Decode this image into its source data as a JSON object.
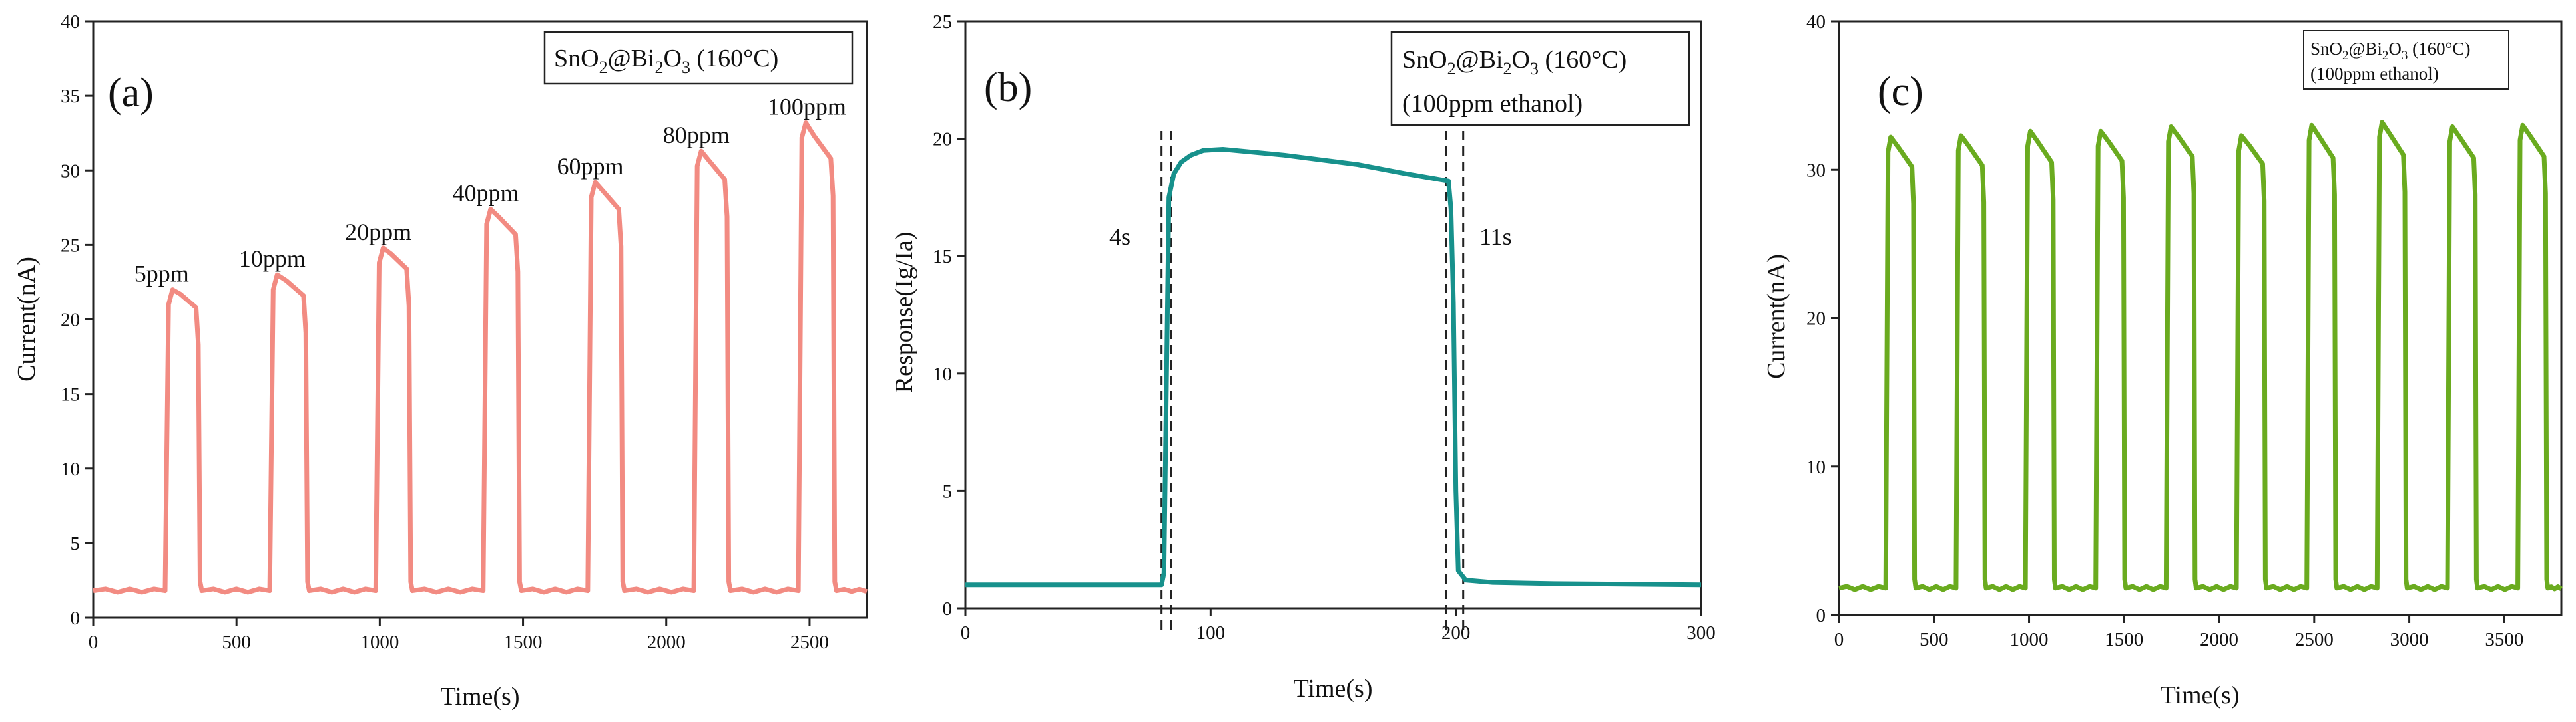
{
  "figure": {
    "panels": [
      "(a)",
      "(b)",
      "(c)"
    ]
  },
  "chart_data": [
    {
      "type": "line",
      "panel": "(a)",
      "title": "",
      "legend": {
        "material": "SnO",
        "sub1": "2",
        "mid": "@Bi",
        "sub2": "2",
        "mid2": "O",
        "sub3": "3",
        "tail": " (160°C)"
      },
      "xlabel": "Time(s)",
      "ylabel": "Current(nA)",
      "xlim": [
        0,
        2700
      ],
      "ylim": [
        0,
        40
      ],
      "xticks": [
        0,
        500,
        1000,
        1500,
        2000,
        2500
      ],
      "yticks": [
        0,
        5,
        10,
        15,
        20,
        25,
        30,
        35,
        40
      ],
      "color": "#f28b82",
      "baseline": 1.8,
      "pulses": [
        {
          "label": "5ppm",
          "start": 255,
          "end": 365,
          "peak": 22.0,
          "before_drop": 20.8
        },
        {
          "label": "10ppm",
          "start": 620,
          "end": 740,
          "peak": 23.0,
          "before_drop": 21.6
        },
        {
          "label": "20ppm",
          "start": 990,
          "end": 1100,
          "peak": 24.8,
          "before_drop": 23.4
        },
        {
          "label": "40ppm",
          "start": 1365,
          "end": 1480,
          "peak": 27.4,
          "before_drop": 25.7
        },
        {
          "label": "60ppm",
          "start": 1730,
          "end": 1840,
          "peak": 29.2,
          "before_drop": 27.4
        },
        {
          "label": "80ppm",
          "start": 2100,
          "end": 2210,
          "peak": 31.3,
          "before_drop": 29.4
        },
        {
          "label": "100ppm",
          "start": 2465,
          "end": 2580,
          "peak": 33.2,
          "before_drop": 30.8
        }
      ]
    },
    {
      "type": "line",
      "panel": "(b)",
      "title": "",
      "legend": {
        "material": "SnO",
        "sub1": "2",
        "mid": "@Bi",
        "sub2": "2",
        "mid2": "O",
        "sub3": "3",
        "tail": " (160°C)",
        "line2": "(100ppm ethanol)"
      },
      "xlabel": "Time(s)",
      "ylabel": "Response(Ig/Ia)",
      "xlim": [
        0,
        300
      ],
      "ylim": [
        0,
        25
      ],
      "xticks": [
        0,
        100,
        200,
        300
      ],
      "yticks": [
        0,
        5,
        10,
        15,
        20,
        25
      ],
      "color": "#17918c",
      "points": [
        [
          0,
          1.0
        ],
        [
          80,
          1.0
        ],
        [
          81,
          1.5
        ],
        [
          83,
          17.5
        ],
        [
          85,
          18.5
        ],
        [
          88,
          19.0
        ],
        [
          92,
          19.3
        ],
        [
          97,
          19.5
        ],
        [
          105,
          19.55
        ],
        [
          130,
          19.3
        ],
        [
          160,
          18.9
        ],
        [
          180,
          18.5
        ],
        [
          197,
          18.2
        ],
        [
          198,
          17.0
        ],
        [
          199,
          13.0
        ],
        [
          200,
          5.0
        ],
        [
          201,
          1.6
        ],
        [
          204,
          1.2
        ],
        [
          215,
          1.1
        ],
        [
          240,
          1.05
        ],
        [
          300,
          1.0
        ]
      ],
      "markers": [
        {
          "x": 80,
          "label": ""
        },
        {
          "x": 84,
          "label": "4s"
        },
        {
          "x": 196,
          "label": ""
        },
        {
          "x": 203,
          "label": "11s"
        }
      ],
      "annotations": [
        "4s",
        "11s"
      ]
    },
    {
      "type": "line",
      "panel": "(c)",
      "title": "",
      "legend": {
        "material": "SnO",
        "sub1": "2",
        "mid": "@Bi",
        "sub2": "2",
        "mid2": "O",
        "sub3": "3",
        "tail": " (160°C)",
        "line2": "(100ppm ethanol)"
      },
      "xlabel": "Time(s)",
      "ylabel": "Current(nA)",
      "xlim": [
        0,
        3800
      ],
      "ylim": [
        0,
        40
      ],
      "xticks": [
        0,
        500,
        1000,
        1500,
        2000,
        2500,
        3000,
        3500
      ],
      "yticks": [
        0,
        10,
        20,
        30,
        40
      ],
      "color": "#6aab1f",
      "baseline": 1.8,
      "pulses": [
        {
          "start": 250,
          "end": 390,
          "peak": 32.2,
          "before_drop": 30.2
        },
        {
          "start": 620,
          "end": 760,
          "peak": 32.3,
          "before_drop": 30.3
        },
        {
          "start": 985,
          "end": 1125,
          "peak": 32.6,
          "before_drop": 30.5
        },
        {
          "start": 1355,
          "end": 1495,
          "peak": 32.6,
          "before_drop": 30.6
        },
        {
          "start": 1725,
          "end": 1865,
          "peak": 32.9,
          "before_drop": 30.9
        },
        {
          "start": 2095,
          "end": 2235,
          "peak": 32.3,
          "before_drop": 30.4
        },
        {
          "start": 2465,
          "end": 2605,
          "peak": 33.0,
          "before_drop": 30.8
        },
        {
          "start": 2835,
          "end": 2975,
          "peak": 33.2,
          "before_drop": 31.0
        },
        {
          "start": 3205,
          "end": 3345,
          "peak": 32.9,
          "before_drop": 30.8
        },
        {
          "start": 3575,
          "end": 3715,
          "peak": 33.0,
          "before_drop": 30.9
        }
      ]
    }
  ]
}
